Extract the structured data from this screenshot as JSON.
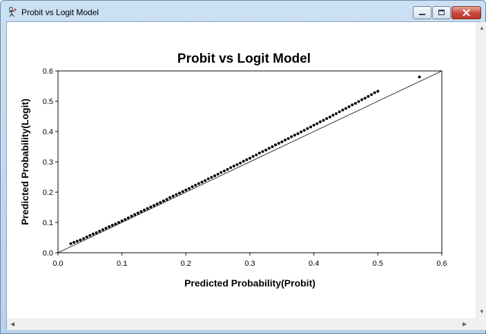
{
  "window": {
    "title": "Probit vs Logit Model",
    "icon": "figure-icon",
    "controls": [
      "minimize-icon",
      "maximize-icon",
      "close-icon"
    ]
  },
  "scrollbars": {
    "vertical_icons": [
      "up-arrow-icon",
      "down-arrow-icon"
    ],
    "horizontal_icons": [
      "left-arrow-icon",
      "right-arrow-icon"
    ]
  },
  "chart_data": {
    "type": "scatter",
    "title": "Probit vs Logit Model",
    "xlabel": "Predicted Probability(Probit)",
    "ylabel": "Predicted Probability(Logit)",
    "xlim": [
      0,
      0.6
    ],
    "ylim": [
      0,
      0.6
    ],
    "xticks": [
      "0.0",
      "0.1",
      "0.2",
      "0.3",
      "0.4",
      "0.5",
      "0.6"
    ],
    "yticks": [
      "0.0",
      "0.1",
      "0.2",
      "0.3",
      "0.4",
      "0.5",
      "0.6"
    ],
    "grid": false,
    "legend": "none",
    "reference_line": {
      "x": [
        0,
        0.6
      ],
      "y": [
        0,
        0.6
      ]
    },
    "points_color": "#000000",
    "series": [
      {
        "x": [
          0.02,
          0.025,
          0.03,
          0.035,
          0.04,
          0.045,
          0.05,
          0.055,
          0.06,
          0.065,
          0.07,
          0.075,
          0.08,
          0.085,
          0.09,
          0.095,
          0.1,
          0.105,
          0.11,
          0.115,
          0.12,
          0.125,
          0.13,
          0.135,
          0.14,
          0.145,
          0.15,
          0.155,
          0.16,
          0.165,
          0.17,
          0.175,
          0.18,
          0.185,
          0.19,
          0.195,
          0.2,
          0.205,
          0.21,
          0.215,
          0.22,
          0.225,
          0.23,
          0.235,
          0.24,
          0.245,
          0.25,
          0.255,
          0.26,
          0.265,
          0.27,
          0.275,
          0.28,
          0.285,
          0.29,
          0.295,
          0.3,
          0.305,
          0.31,
          0.315,
          0.32,
          0.325,
          0.33,
          0.335,
          0.34,
          0.345,
          0.35,
          0.355,
          0.36,
          0.365,
          0.37,
          0.375,
          0.38,
          0.385,
          0.39,
          0.395,
          0.4,
          0.405,
          0.41,
          0.415,
          0.42,
          0.425,
          0.43,
          0.435,
          0.44,
          0.445,
          0.45,
          0.455,
          0.46,
          0.465,
          0.47,
          0.475,
          0.48,
          0.485,
          0.49,
          0.495,
          0.5,
          0.565
        ],
        "y": [
          0.03,
          0.034,
          0.038,
          0.042,
          0.047,
          0.052,
          0.057,
          0.062,
          0.066,
          0.071,
          0.076,
          0.081,
          0.086,
          0.091,
          0.095,
          0.1,
          0.105,
          0.11,
          0.115,
          0.121,
          0.126,
          0.131,
          0.136,
          0.141,
          0.146,
          0.151,
          0.156,
          0.161,
          0.166,
          0.171,
          0.176,
          0.182,
          0.187,
          0.192,
          0.197,
          0.202,
          0.207,
          0.212,
          0.218,
          0.223,
          0.228,
          0.233,
          0.238,
          0.244,
          0.249,
          0.254,
          0.259,
          0.265,
          0.27,
          0.275,
          0.281,
          0.286,
          0.291,
          0.296,
          0.302,
          0.307,
          0.312,
          0.318,
          0.323,
          0.329,
          0.334,
          0.339,
          0.345,
          0.35,
          0.356,
          0.361,
          0.366,
          0.372,
          0.377,
          0.383,
          0.388,
          0.393,
          0.399,
          0.404,
          0.41,
          0.415,
          0.421,
          0.426,
          0.432,
          0.437,
          0.443,
          0.448,
          0.454,
          0.459,
          0.465,
          0.471,
          0.476,
          0.482,
          0.488,
          0.493,
          0.499,
          0.505,
          0.51,
          0.516,
          0.522,
          0.528,
          0.533,
          0.58
        ]
      }
    ]
  }
}
